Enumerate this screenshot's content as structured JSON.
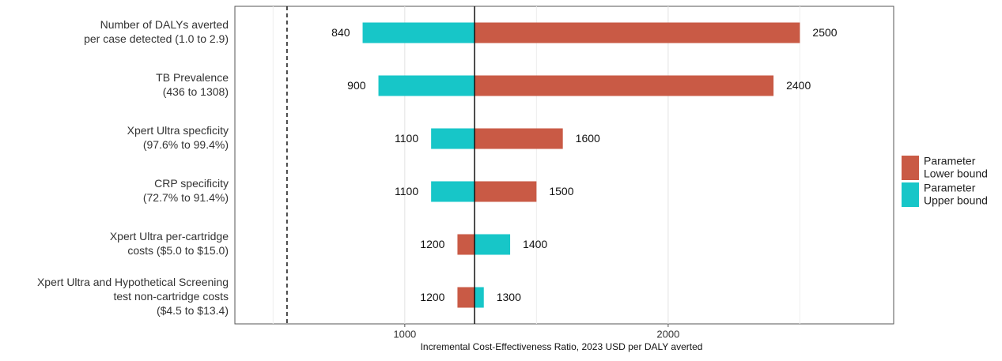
{
  "chart_data": {
    "type": "tornado",
    "x_label": "Incremental Cost-Effectiveness Ratio, 2023 USD per DALY averted",
    "categories": [
      [
        "Number of DALYs averted",
        "per case detected (1.0 to 2.9)"
      ],
      [
        "TB Prevalence",
        "(436 to 1308)"
      ],
      [
        "Xpert Ultra specficity",
        "(97.6% to 99.4%)"
      ],
      [
        "CRP specificity",
        "(72.7% to 91.4%)"
      ],
      [
        "Xpert Ultra per-cartridge",
        "costs ($5.0 to $15.0)"
      ],
      [
        "Xpert Ultra and Hypothetical Screening",
        "test non-cartridge costs",
        "($4.5 to $13.4)"
      ]
    ],
    "series": [
      {
        "name": [
          "Parameter",
          "Lower bound"
        ],
        "color": "#c95a45",
        "values": [
          2500,
          2400,
          1600,
          1500,
          1200,
          1200
        ]
      },
      {
        "name": [
          "Parameter",
          "Upper bound"
        ],
        "color": "#17c6c8",
        "values": [
          840,
          900,
          1100,
          1100,
          1400,
          1300
        ]
      }
    ],
    "base_value": 1265,
    "threshold": 553,
    "xlim": [
      355,
      2856
    ],
    "xticks": [
      1000,
      2000
    ],
    "minor_xticks": [
      500,
      1500,
      2500
    ],
    "grid": true
  }
}
